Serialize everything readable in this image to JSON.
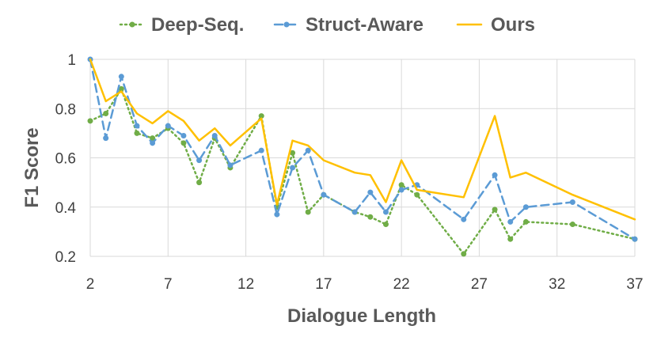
{
  "chart_data": {
    "type": "line",
    "xlabel": "Dialogue Length",
    "ylabel": "F1 Score",
    "xlim": [
      2,
      37
    ],
    "ylim": [
      0.2,
      1.0
    ],
    "x_ticks": [
      2,
      7,
      12,
      17,
      22,
      27,
      32,
      37
    ],
    "y_ticks": [
      0.2,
      0.4,
      0.6,
      0.8,
      1.0
    ],
    "y_tick_labels": [
      "0.2",
      "0.4",
      "0.6",
      "0.8",
      "1"
    ],
    "grid": "horizontal and vertical",
    "legend_position": "top",
    "series": [
      {
        "name": "Deep-Seq.",
        "color": "#70ad47",
        "style": "dotted",
        "marker": "circle",
        "x": [
          2,
          3,
          4,
          5,
          6,
          7,
          8,
          9,
          10,
          11,
          13,
          14,
          15,
          16,
          17,
          19,
          20,
          21,
          22,
          23,
          26,
          28,
          29,
          30,
          33,
          37
        ],
        "y": [
          0.75,
          0.78,
          0.88,
          0.7,
          0.68,
          0.72,
          0.66,
          0.5,
          0.68,
          0.56,
          0.77,
          0.4,
          0.62,
          0.38,
          0.45,
          0.38,
          0.36,
          0.33,
          0.49,
          0.45,
          0.21,
          0.39,
          0.27,
          0.34,
          0.33,
          0.27
        ]
      },
      {
        "name": "Struct-Aware",
        "color": "#5b9bd5",
        "style": "dashed",
        "marker": "circle",
        "x": [
          2,
          3,
          4,
          5,
          6,
          7,
          8,
          9,
          10,
          11,
          13,
          14,
          15,
          16,
          17,
          19,
          20,
          21,
          22,
          23,
          26,
          28,
          29,
          30,
          33,
          37
        ],
        "y": [
          1.0,
          0.68,
          0.93,
          0.73,
          0.66,
          0.73,
          0.69,
          0.59,
          0.69,
          0.57,
          0.63,
          0.37,
          0.56,
          0.63,
          0.45,
          0.38,
          0.46,
          0.38,
          0.47,
          0.49,
          0.35,
          0.53,
          0.34,
          0.4,
          0.42,
          0.27
        ]
      },
      {
        "name": "Ours",
        "color": "#ffc000",
        "style": "solid",
        "marker": "none",
        "x": [
          2,
          3,
          4,
          5,
          6,
          7,
          8,
          9,
          10,
          11,
          13,
          14,
          15,
          16,
          17,
          19,
          20,
          21,
          22,
          23,
          26,
          28,
          29,
          30,
          33,
          37
        ],
        "y": [
          1.0,
          0.83,
          0.87,
          0.78,
          0.74,
          0.79,
          0.75,
          0.67,
          0.72,
          0.65,
          0.76,
          0.41,
          0.67,
          0.65,
          0.59,
          0.54,
          0.53,
          0.42,
          0.59,
          0.47,
          0.44,
          0.77,
          0.52,
          0.54,
          0.45,
          0.35
        ]
      }
    ]
  }
}
